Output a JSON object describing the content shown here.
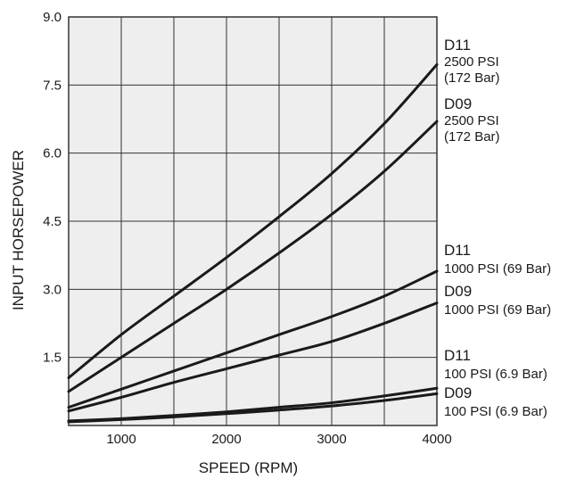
{
  "chart_data": {
    "type": "line",
    "title": "",
    "xlabel": "SPEED (RPM)",
    "ylabel": "INPUT HORSEPOWER",
    "xlim": [
      500,
      4000
    ],
    "ylim": [
      0,
      9.0
    ],
    "grid": true,
    "legend": "inline-right",
    "x_ticks": [
      1000,
      1500,
      2000,
      2500,
      3000,
      3500,
      4000
    ],
    "x_tick_labels": [
      "1000",
      "",
      "2000",
      "",
      "3000",
      "",
      "4000"
    ],
    "y_ticks": [
      0,
      1.5,
      3.0,
      4.5,
      6.0,
      7.5,
      9.0
    ],
    "y_tick_labels": [
      "",
      "1.5",
      "3.0",
      "4.5",
      "6.0",
      "7.5",
      "9.0"
    ],
    "colors": {
      "plot_background": "#eeeeee",
      "grid": "#333333",
      "line": "#1a1a1a"
    },
    "series": [
      {
        "name": "D11",
        "detail": [
          "2500 PSI",
          "(172 Bar)"
        ],
        "x": [
          500,
          1000,
          1500,
          2000,
          2500,
          3000,
          3500,
          4000
        ],
        "values": [
          1.05,
          2.0,
          2.85,
          3.7,
          4.6,
          5.55,
          6.65,
          7.95
        ]
      },
      {
        "name": "D09",
        "detail": [
          "2500 PSI",
          "(172 Bar)"
        ],
        "x": [
          500,
          1000,
          1500,
          2000,
          2500,
          3000,
          3500,
          4000
        ],
        "values": [
          0.75,
          1.5,
          2.25,
          3.0,
          3.8,
          4.65,
          5.6,
          6.7
        ]
      },
      {
        "name": "D11",
        "detail": [
          "1000 PSI (69 Bar)"
        ],
        "x": [
          500,
          1000,
          1500,
          2000,
          2500,
          3000,
          3500,
          4000
        ],
        "values": [
          0.4,
          0.8,
          1.2,
          1.6,
          2.0,
          2.4,
          2.85,
          3.4
        ]
      },
      {
        "name": "D09",
        "detail": [
          "1000 PSI (69 Bar)"
        ],
        "x": [
          500,
          1000,
          1500,
          2000,
          2500,
          3000,
          3500,
          4000
        ],
        "values": [
          0.32,
          0.62,
          0.95,
          1.25,
          1.55,
          1.85,
          2.25,
          2.7
        ]
      },
      {
        "name": "D11",
        "detail": [
          "100 PSI (6.9 Bar)"
        ],
        "x": [
          500,
          1000,
          1500,
          2000,
          2500,
          3000,
          3500,
          4000
        ],
        "values": [
          0.1,
          0.15,
          0.22,
          0.3,
          0.4,
          0.5,
          0.65,
          0.82
        ]
      },
      {
        "name": "D09",
        "detail": [
          "100 PSI (6.9 Bar)"
        ],
        "x": [
          500,
          1000,
          1500,
          2000,
          2500,
          3000,
          3500,
          4000
        ],
        "values": [
          0.08,
          0.13,
          0.19,
          0.26,
          0.34,
          0.43,
          0.55,
          0.7
        ]
      }
    ]
  }
}
